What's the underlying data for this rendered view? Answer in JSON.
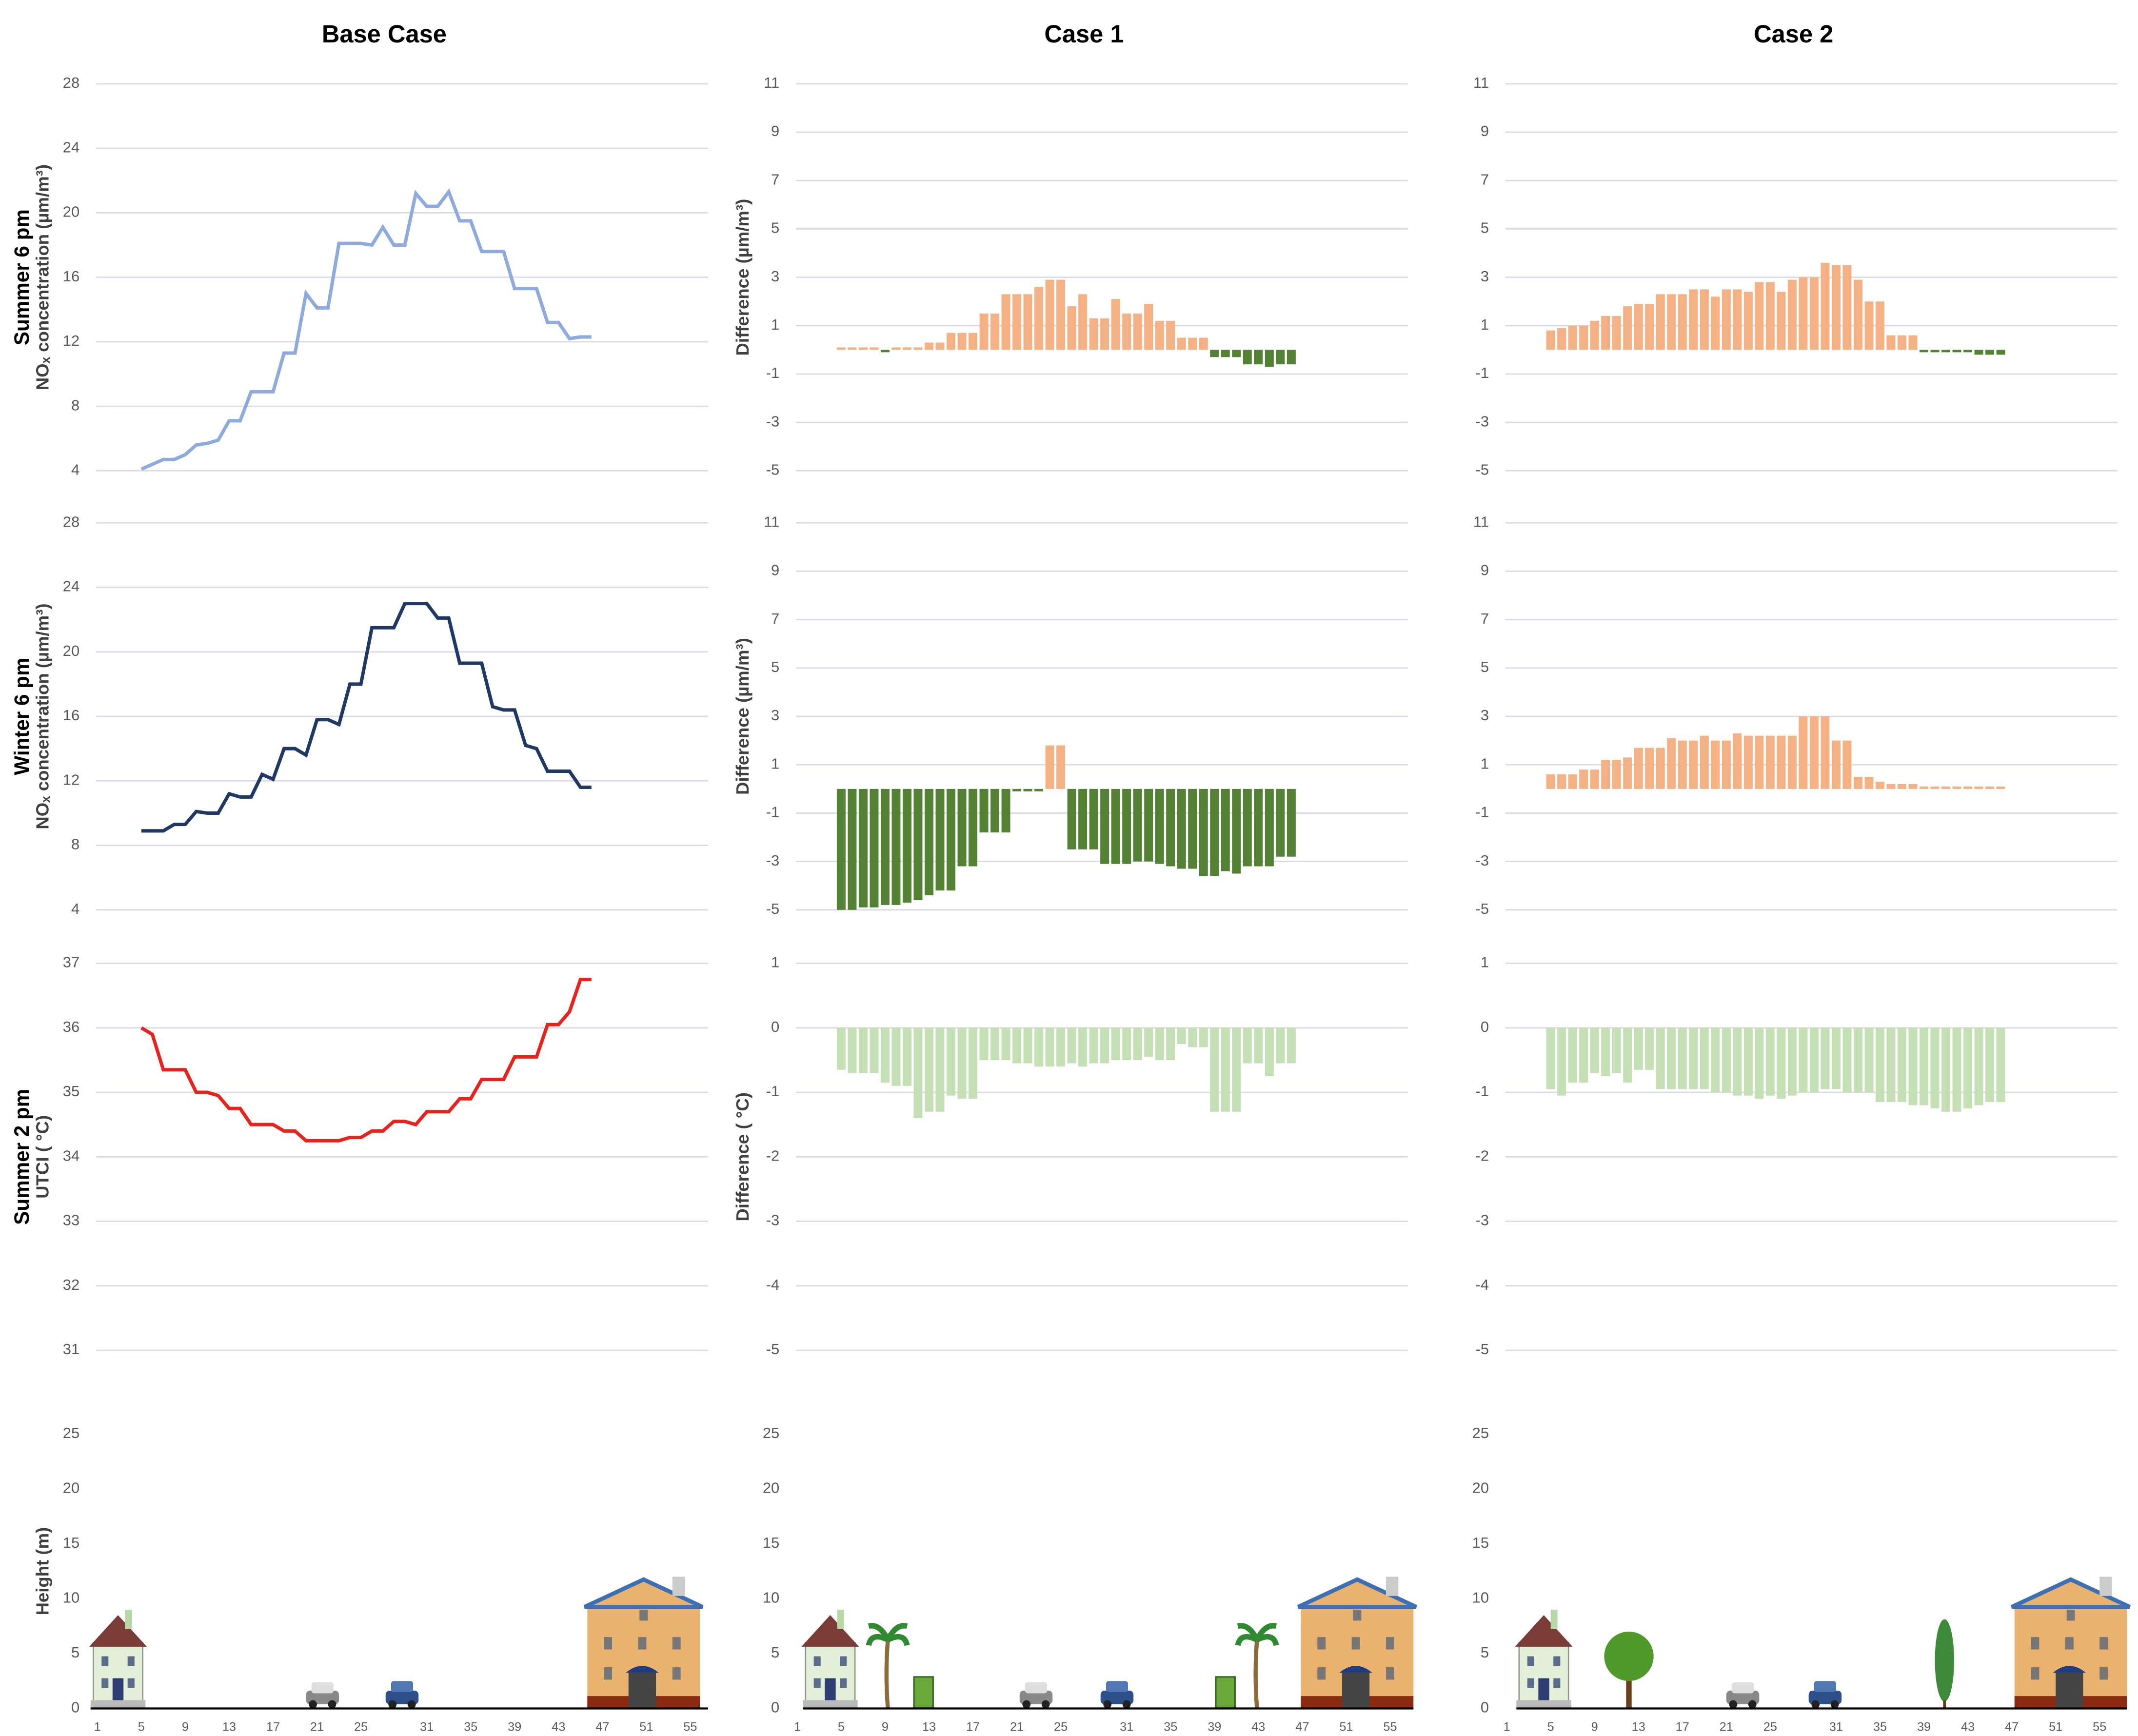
{
  "chart_data": [
    {
      "type": "line",
      "title": "Base Case",
      "row_label": "Summer 6 pm",
      "ylabel": "NOₓ concentration (µm/m³)",
      "color": "#8faadc",
      "grid": true,
      "ylim": [
        4,
        28
      ],
      "yticks": [
        4,
        8,
        12,
        16,
        20,
        24,
        28
      ],
      "x": [
        5,
        6,
        7,
        8,
        9,
        10,
        11,
        12,
        13,
        14,
        15,
        16,
        17,
        18,
        19,
        20,
        21,
        22,
        23,
        24,
        25,
        26,
        27,
        28,
        29,
        30,
        31,
        32,
        33,
        34,
        35,
        36,
        37,
        38,
        39,
        40,
        41,
        42,
        43,
        44,
        45,
        46
      ],
      "values": [
        4.1,
        4.4,
        4.7,
        4.7,
        5.0,
        5.6,
        5.7,
        5.9,
        7.1,
        7.1,
        8.9,
        8.9,
        8.9,
        11.3,
        11.3,
        15.0,
        14.1,
        14.1,
        18.1,
        18.1,
        18.1,
        18.0,
        19.1,
        18.0,
        18.0,
        21.2,
        20.4,
        20.4,
        21.3,
        19.5,
        19.5,
        17.6,
        17.6,
        17.6,
        15.3,
        15.3,
        15.3,
        13.2,
        13.2,
        12.2,
        12.3,
        12.3
      ]
    },
    {
      "type": "bar",
      "title": "Case 1",
      "ylabel": "Difference (µm/m³)",
      "color": "#f4b183",
      "negative_color": "#548235",
      "grid": true,
      "ylim": [
        -5,
        11
      ],
      "yticks": [
        -5,
        -3,
        -1,
        1,
        3,
        5,
        7,
        9,
        11
      ],
      "x": [
        5,
        6,
        7,
        8,
        9,
        10,
        11,
        12,
        13,
        14,
        15,
        16,
        17,
        18,
        19,
        20,
        21,
        22,
        23,
        24,
        25,
        26,
        27,
        28,
        29,
        30,
        31,
        32,
        33,
        34,
        35,
        36,
        37,
        38,
        39,
        40,
        41,
        42,
        43,
        44,
        45,
        46
      ],
      "values": [
        0.1,
        0.1,
        0.1,
        0.1,
        -0.1,
        0.1,
        0.1,
        0.1,
        0.3,
        0.3,
        0.7,
        0.7,
        0.7,
        1.5,
        1.5,
        2.3,
        2.3,
        2.3,
        2.6,
        2.9,
        2.9,
        1.8,
        2.3,
        1.3,
        1.3,
        2.1,
        1.5,
        1.5,
        1.9,
        1.2,
        1.2,
        0.5,
        0.5,
        0.5,
        -0.3,
        -0.3,
        -0.3,
        -0.6,
        -0.6,
        -0.7,
        -0.6,
        -0.6
      ]
    },
    {
      "type": "bar",
      "title": "Case 2",
      "color": "#f4b183",
      "negative_color": "#548235",
      "grid": true,
      "ylim": [
        -5,
        11
      ],
      "yticks": [
        -5,
        -3,
        -1,
        1,
        3,
        5,
        7,
        9,
        11
      ],
      "x": [
        5,
        6,
        7,
        8,
        9,
        10,
        11,
        12,
        13,
        14,
        15,
        16,
        17,
        18,
        19,
        20,
        21,
        22,
        23,
        24,
        25,
        26,
        27,
        28,
        29,
        30,
        31,
        32,
        33,
        34,
        35,
        36,
        37,
        38,
        39,
        40,
        41,
        42,
        43,
        44,
        45,
        46
      ],
      "values": [
        0.8,
        0.9,
        1.0,
        1.0,
        1.2,
        1.4,
        1.4,
        1.8,
        1.9,
        1.9,
        2.3,
        2.3,
        2.3,
        2.5,
        2.5,
        2.2,
        2.5,
        2.5,
        2.4,
        2.8,
        2.8,
        2.4,
        2.9,
        3.0,
        3.0,
        3.6,
        3.5,
        3.5,
        2.9,
        2.0,
        2.0,
        0.6,
        0.6,
        0.6,
        -0.1,
        -0.1,
        -0.1,
        -0.1,
        -0.1,
        -0.2,
        -0.2,
        -0.2
      ]
    },
    {
      "type": "line",
      "row_label": "Winter 6 pm",
      "ylabel": "NOₓ concentration (µm/m³)",
      "color": "#203864",
      "grid": true,
      "ylim": [
        4,
        28
      ],
      "yticks": [
        4,
        8,
        12,
        16,
        20,
        24,
        28
      ],
      "x": [
        5,
        6,
        7,
        8,
        9,
        10,
        11,
        12,
        13,
        14,
        15,
        16,
        17,
        18,
        19,
        20,
        21,
        22,
        23,
        24,
        25,
        26,
        27,
        28,
        29,
        30,
        31,
        32,
        33,
        34,
        35,
        36,
        37,
        38,
        39,
        40,
        41,
        42,
        43,
        44,
        45,
        46
      ],
      "values": [
        8.9,
        8.9,
        8.9,
        9.3,
        9.3,
        10.1,
        10.0,
        10.0,
        11.2,
        11.0,
        11.0,
        12.4,
        12.1,
        14.0,
        14.0,
        13.6,
        15.8,
        15.8,
        15.5,
        18.0,
        18.0,
        21.5,
        21.5,
        21.5,
        23.0,
        23.0,
        23.0,
        22.1,
        22.1,
        19.3,
        19.3,
        19.3,
        16.6,
        16.4,
        16.4,
        14.2,
        14.0,
        12.6,
        12.6,
        12.6,
        11.6,
        11.6
      ]
    },
    {
      "type": "bar",
      "ylabel": "Difference (µm/m³)",
      "color": "#f4b183",
      "negative_color": "#548235",
      "grid": true,
      "ylim": [
        -5,
        11
      ],
      "yticks": [
        -5,
        -3,
        -1,
        1,
        3,
        5,
        7,
        9,
        11
      ],
      "x": [
        5,
        6,
        7,
        8,
        9,
        10,
        11,
        12,
        13,
        14,
        15,
        16,
        17,
        18,
        19,
        20,
        21,
        22,
        23,
        24,
        25,
        26,
        27,
        28,
        29,
        30,
        31,
        32,
        33,
        34,
        35,
        36,
        37,
        38,
        39,
        40,
        41,
        42,
        43,
        44,
        45,
        46
      ],
      "values": [
        -5,
        -5,
        -4.9,
        -4.9,
        -4.8,
        -4.8,
        -4.7,
        -4.6,
        -4.4,
        -4.2,
        -4.2,
        -3.2,
        -3.2,
        -1.8,
        -1.8,
        -1.8,
        -0.1,
        -0.1,
        -0.1,
        1.8,
        1.8,
        -2.5,
        -2.5,
        -2.5,
        -3.1,
        -3.1,
        -3.1,
        -3.0,
        -3.0,
        -3.1,
        -3.2,
        -3.3,
        -3.3,
        -3.6,
        -3.6,
        -3.4,
        -3.5,
        -3.2,
        -3.2,
        -3.2,
        -2.8,
        -2.8
      ]
    },
    {
      "type": "bar",
      "color": "#f4b183",
      "negative_color": "#548235",
      "grid": true,
      "ylim": [
        -5,
        11
      ],
      "yticks": [
        -5,
        -3,
        -1,
        1,
        3,
        5,
        7,
        9,
        11
      ],
      "x": [
        5,
        6,
        7,
        8,
        9,
        10,
        11,
        12,
        13,
        14,
        15,
        16,
        17,
        18,
        19,
        20,
        21,
        22,
        23,
        24,
        25,
        26,
        27,
        28,
        29,
        30,
        31,
        32,
        33,
        34,
        35,
        36,
        37,
        38,
        39,
        40,
        41,
        42,
        43,
        44,
        45,
        46
      ],
      "values": [
        0.6,
        0.6,
        0.6,
        0.8,
        0.8,
        1.2,
        1.2,
        1.3,
        1.7,
        1.7,
        1.7,
        2.1,
        2.0,
        2.0,
        2.2,
        2.0,
        2.0,
        2.3,
        2.2,
        2.2,
        2.2,
        2.2,
        2.2,
        3.0,
        3.0,
        3.0,
        2.0,
        2.0,
        0.5,
        0.5,
        0.3,
        0.2,
        0.2,
        0.2,
        0.1,
        0.1,
        0.1,
        0.1,
        0.1,
        0.1,
        0.1,
        0.1
      ]
    },
    {
      "type": "line",
      "row_label": "Summer 2 pm",
      "ylabel": "UTCI ( °C)",
      "color": "#e8221c",
      "grid": true,
      "ylim": [
        31,
        37
      ],
      "yticks": [
        31,
        32,
        33,
        34,
        35,
        36,
        37
      ],
      "x": [
        5,
        6,
        7,
        8,
        9,
        10,
        11,
        12,
        13,
        14,
        15,
        16,
        17,
        18,
        19,
        20,
        21,
        22,
        23,
        24,
        25,
        26,
        27,
        28,
        29,
        30,
        31,
        32,
        33,
        34,
        35,
        36,
        37,
        38,
        39,
        40,
        41,
        42,
        43,
        44,
        45,
        46
      ],
      "values": [
        36.0,
        35.9,
        35.35,
        35.35,
        35.35,
        35.0,
        35.0,
        34.95,
        34.75,
        34.75,
        34.5,
        34.5,
        34.5,
        34.4,
        34.4,
        34.25,
        34.25,
        34.25,
        34.25,
        34.3,
        34.3,
        34.4,
        34.4,
        34.55,
        34.55,
        34.5,
        34.7,
        34.7,
        34.7,
        34.9,
        34.9,
        35.2,
        35.2,
        35.2,
        35.55,
        35.55,
        35.55,
        36.05,
        36.05,
        36.25,
        36.75,
        36.75
      ]
    },
    {
      "type": "bar",
      "ylabel": "Difference ( °C)",
      "color": "#c5e0b4",
      "negative_color": "#c5e0b4",
      "grid": true,
      "ylim": [
        -5,
        1
      ],
      "yticks": [
        -5,
        -4,
        -3,
        -2,
        -1,
        0,
        1
      ],
      "x": [
        5,
        6,
        7,
        8,
        9,
        10,
        11,
        12,
        13,
        14,
        15,
        16,
        17,
        18,
        19,
        20,
        21,
        22,
        23,
        24,
        25,
        26,
        27,
        28,
        29,
        30,
        31,
        32,
        33,
        34,
        35,
        36,
        37,
        38,
        39,
        40,
        41,
        42,
        43,
        44,
        45,
        46
      ],
      "values": [
        -0.65,
        -0.7,
        -0.7,
        -0.7,
        -0.85,
        -0.9,
        -0.9,
        -1.4,
        -1.3,
        -1.3,
        -1.05,
        -1.1,
        -1.1,
        -0.5,
        -0.5,
        -0.5,
        -0.55,
        -0.55,
        -0.6,
        -0.6,
        -0.6,
        -0.55,
        -0.6,
        -0.55,
        -0.55,
        -0.5,
        -0.5,
        -0.5,
        -0.45,
        -0.5,
        -0.5,
        -0.25,
        -0.3,
        -0.3,
        -1.3,
        -1.3,
        -1.3,
        -0.55,
        -0.55,
        -0.75,
        -0.55,
        -0.55
      ]
    },
    {
      "type": "bar",
      "color": "#c5e0b4",
      "negative_color": "#c5e0b4",
      "grid": true,
      "ylim": [
        -5,
        1
      ],
      "yticks": [
        -5,
        -4,
        -3,
        -2,
        -1,
        0,
        1
      ],
      "x": [
        5,
        6,
        7,
        8,
        9,
        10,
        11,
        12,
        13,
        14,
        15,
        16,
        17,
        18,
        19,
        20,
        21,
        22,
        23,
        24,
        25,
        26,
        27,
        28,
        29,
        30,
        31,
        32,
        33,
        34,
        35,
        36,
        37,
        38,
        39,
        40,
        41,
        42,
        43,
        44,
        45,
        46
      ],
      "values": [
        -0.95,
        -1.05,
        -0.85,
        -0.85,
        -0.7,
        -0.75,
        -0.7,
        -0.85,
        -0.65,
        -0.65,
        -0.95,
        -0.95,
        -0.95,
        -0.95,
        -0.95,
        -1.0,
        -1.0,
        -1.05,
        -1.05,
        -1.1,
        -1.05,
        -1.1,
        -1.05,
        -1.0,
        -1.0,
        -0.95,
        -0.95,
        -1.0,
        -1.0,
        -1.0,
        -1.15,
        -1.15,
        -1.15,
        -1.2,
        -1.2,
        -1.25,
        -1.3,
        -1.3,
        -1.25,
        -1.2,
        -1.15,
        -1.15
      ]
    },
    {
      "type": "profile",
      "ylabel": "Height (m)",
      "grid": false,
      "ylim": [
        0,
        25
      ],
      "yticks": [
        0,
        5,
        10,
        15,
        20,
        25
      ],
      "xticks": [
        1,
        5,
        9,
        13,
        17,
        21,
        25,
        31,
        35,
        39,
        43,
        47,
        51,
        55
      ]
    },
    {
      "type": "profile",
      "grid": false,
      "ylim": [
        0,
        25
      ],
      "yticks": [
        0,
        5,
        10,
        15,
        20,
        25
      ],
      "xticks": [
        1,
        5,
        9,
        13,
        17,
        21,
        25,
        31,
        35,
        39,
        43,
        47,
        51,
        55
      ]
    },
    {
      "type": "profile",
      "grid": false,
      "ylim": [
        0,
        25
      ],
      "yticks": [
        0,
        5,
        10,
        15,
        20,
        25
      ],
      "xticks": [
        1,
        5,
        9,
        13,
        17,
        21,
        25,
        31,
        35,
        39,
        43,
        47,
        51,
        55
      ]
    }
  ]
}
